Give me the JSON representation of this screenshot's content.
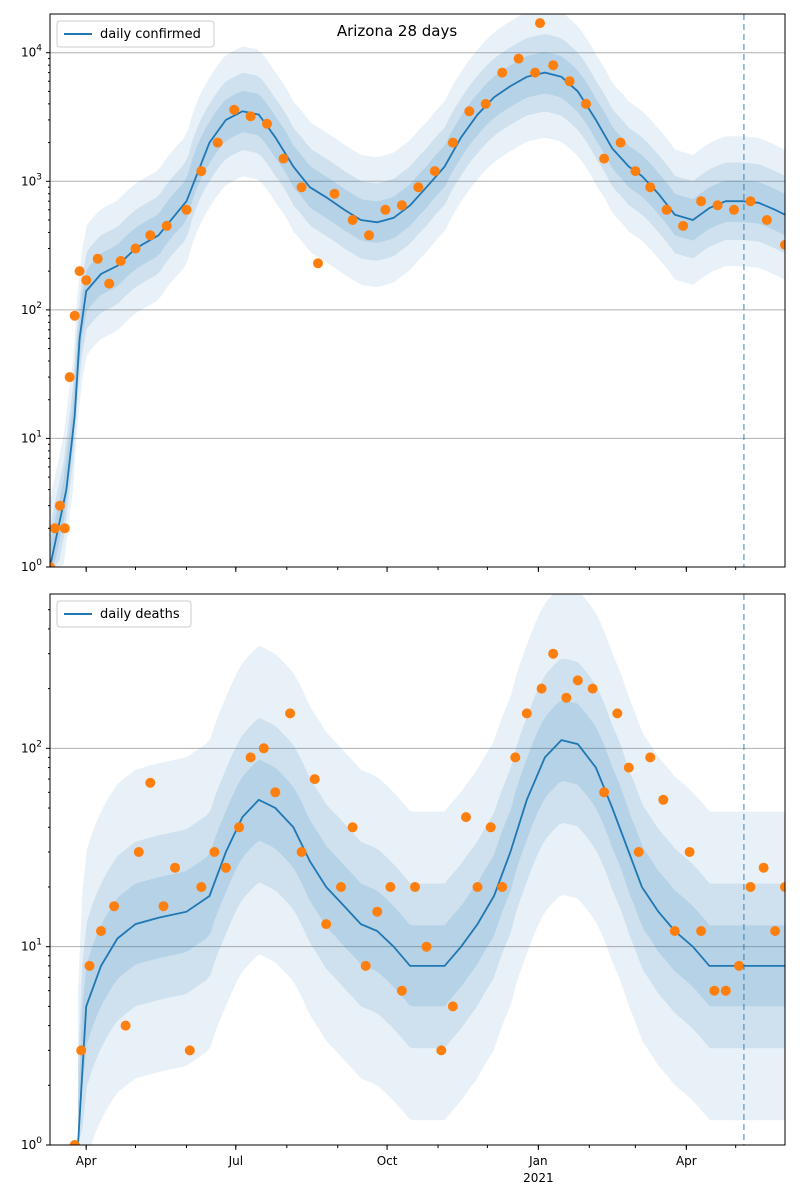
{
  "title": "Arizona 28 days",
  "colors": {
    "line": "#1f77b4",
    "points": "#ff7f0e",
    "band": "#1f77b4",
    "grid": "#b0b0b0",
    "vline": "#1f77b4"
  },
  "x_axis": {
    "ticks": [
      {
        "date": "2020-04-01",
        "label": "Apr",
        "sublabel": ""
      },
      {
        "date": "2020-07-01",
        "label": "Jul",
        "sublabel": ""
      },
      {
        "date": "2020-10-01",
        "label": "Oct",
        "sublabel": ""
      },
      {
        "date": "2021-01-01",
        "label": "Jan",
        "sublabel": "2021"
      },
      {
        "date": "2021-04-01",
        "label": "Apr",
        "sublabel": ""
      }
    ],
    "range": [
      "2020-03-10",
      "2021-05-31"
    ],
    "vertical_marker": "2021-05-06"
  },
  "chart_data": [
    {
      "type": "line",
      "title": "Arizona 28 days",
      "legend": "daily confirmed",
      "legend_position": "top-left",
      "yscale": "log",
      "ylim": [
        1,
        20000
      ],
      "yticks": [
        {
          "value": 1,
          "base": "10",
          "exp": "0"
        },
        {
          "value": 10,
          "base": "10",
          "exp": "1"
        },
        {
          "value": 100,
          "base": "10",
          "exp": "2"
        },
        {
          "value": 1000,
          "base": "10",
          "exp": "3"
        },
        {
          "value": 10000,
          "base": "10",
          "exp": "4"
        }
      ],
      "grid": "horizontal",
      "series": [
        {
          "name": "daily confirmed",
          "style": "line",
          "x": [
            "2020-03-10",
            "2020-03-15",
            "2020-03-20",
            "2020-03-25",
            "2020-03-28",
            "2020-04-01",
            "2020-04-10",
            "2020-04-20",
            "2020-05-01",
            "2020-05-15",
            "2020-06-01",
            "2020-06-15",
            "2020-06-25",
            "2020-07-05",
            "2020-07-15",
            "2020-07-25",
            "2020-08-05",
            "2020-08-15",
            "2020-08-25",
            "2020-09-05",
            "2020-09-15",
            "2020-09-25",
            "2020-10-05",
            "2020-10-15",
            "2020-10-25",
            "2020-11-05",
            "2020-11-15",
            "2020-11-25",
            "2020-12-05",
            "2020-12-15",
            "2020-12-25",
            "2021-01-05",
            "2021-01-15",
            "2021-01-25",
            "2021-02-05",
            "2021-02-15",
            "2021-02-25",
            "2021-03-05",
            "2021-03-15",
            "2021-03-25",
            "2021-04-05",
            "2021-04-15",
            "2021-04-25",
            "2021-05-05",
            "2021-05-15",
            "2021-05-25",
            "2021-05-31"
          ],
          "y": [
            1,
            2,
            4,
            15,
            60,
            140,
            190,
            220,
            300,
            380,
            700,
            2000,
            3000,
            3500,
            3300,
            2200,
            1300,
            900,
            750,
            600,
            500,
            480,
            520,
            650,
            900,
            1300,
            2200,
            3300,
            4500,
            5500,
            6500,
            7000,
            6500,
            5000,
            3000,
            1800,
            1300,
            1100,
            800,
            550,
            500,
            620,
            700,
            700,
            680,
            600,
            550
          ]
        },
        {
          "name": "observed daily confirmed",
          "style": "points",
          "x": [
            "2020-03-10",
            "2020-03-13",
            "2020-03-16",
            "2020-03-19",
            "2020-03-22",
            "2020-03-25",
            "2020-03-28",
            "2020-04-01",
            "2020-04-08",
            "2020-04-15",
            "2020-04-22",
            "2020-05-01",
            "2020-05-10",
            "2020-05-20",
            "2020-06-01",
            "2020-06-10",
            "2020-06-20",
            "2020-06-30",
            "2020-07-10",
            "2020-07-20",
            "2020-07-30",
            "2020-08-10",
            "2020-08-20",
            "2020-08-30",
            "2020-09-10",
            "2020-09-20",
            "2020-09-30",
            "2020-10-10",
            "2020-10-20",
            "2020-10-30",
            "2020-11-10",
            "2020-11-20",
            "2020-11-30",
            "2020-12-10",
            "2020-12-20",
            "2020-12-30",
            "2021-01-02",
            "2021-01-10",
            "2021-01-20",
            "2021-01-30",
            "2021-02-10",
            "2021-02-20",
            "2021-03-01",
            "2021-03-10",
            "2021-03-20",
            "2021-03-30",
            "2021-04-10",
            "2021-04-20",
            "2021-04-30",
            "2021-05-10",
            "2021-05-20",
            "2021-05-31"
          ],
          "y": [
            1,
            2,
            3,
            2,
            30,
            90,
            200,
            170,
            250,
            160,
            240,
            300,
            380,
            450,
            600,
            1200,
            2000,
            3600,
            3200,
            2800,
            1500,
            900,
            230,
            800,
            500,
            380,
            600,
            650,
            900,
            1200,
            2000,
            3500,
            4000,
            7000,
            9000,
            7000,
            17000,
            8000,
            6000,
            4000,
            1500,
            2000,
            1200,
            900,
            600,
            450,
            700,
            650,
            600,
            700,
            500,
            320
          ]
        }
      ]
    },
    {
      "type": "line",
      "legend": "daily deaths",
      "legend_position": "top-left",
      "yscale": "log",
      "ylim": [
        1,
        600
      ],
      "yticks": [
        {
          "value": 1,
          "base": "10",
          "exp": "0"
        },
        {
          "value": 10,
          "base": "10",
          "exp": "1"
        },
        {
          "value": 100,
          "base": "10",
          "exp": "2"
        }
      ],
      "grid": "horizontal",
      "series": [
        {
          "name": "daily deaths",
          "style": "line",
          "x": [
            "2020-03-27",
            "2020-04-01",
            "2020-04-10",
            "2020-04-20",
            "2020-05-01",
            "2020-05-15",
            "2020-06-01",
            "2020-06-15",
            "2020-06-25",
            "2020-07-05",
            "2020-07-15",
            "2020-07-25",
            "2020-08-05",
            "2020-08-15",
            "2020-08-25",
            "2020-09-05",
            "2020-09-15",
            "2020-09-25",
            "2020-10-05",
            "2020-10-15",
            "2020-10-25",
            "2020-11-05",
            "2020-11-15",
            "2020-11-25",
            "2020-12-05",
            "2020-12-15",
            "2020-12-25",
            "2021-01-05",
            "2021-01-15",
            "2021-01-25",
            "2021-02-05",
            "2021-02-15",
            "2021-02-25",
            "2021-03-05",
            "2021-03-15",
            "2021-03-25",
            "2021-04-05",
            "2021-04-15",
            "2021-04-25",
            "2021-05-05",
            "2021-05-15",
            "2021-05-25",
            "2021-05-31"
          ],
          "y": [
            1,
            5,
            8,
            11,
            13,
            14,
            15,
            18,
            30,
            45,
            55,
            50,
            40,
            27,
            20,
            16,
            13,
            12,
            10,
            8,
            8,
            8,
            10,
            13,
            18,
            30,
            55,
            90,
            110,
            105,
            80,
            50,
            30,
            20,
            15,
            12,
            10,
            8,
            8,
            8,
            8,
            8,
            8
          ]
        },
        {
          "name": "observed daily deaths",
          "style": "points",
          "x": [
            "2020-03-25",
            "2020-03-29",
            "2020-04-03",
            "2020-04-10",
            "2020-04-18",
            "2020-04-25",
            "2020-05-03",
            "2020-05-10",
            "2020-05-18",
            "2020-05-25",
            "2020-06-03",
            "2020-06-10",
            "2020-06-18",
            "2020-06-25",
            "2020-07-03",
            "2020-07-10",
            "2020-07-18",
            "2020-07-25",
            "2020-08-03",
            "2020-08-10",
            "2020-08-18",
            "2020-08-25",
            "2020-09-03",
            "2020-09-10",
            "2020-09-18",
            "2020-09-25",
            "2020-10-03",
            "2020-10-10",
            "2020-10-18",
            "2020-10-25",
            "2020-11-03",
            "2020-11-10",
            "2020-11-18",
            "2020-11-25",
            "2020-12-03",
            "2020-12-10",
            "2020-12-18",
            "2020-12-25",
            "2021-01-03",
            "2021-01-10",
            "2021-01-18",
            "2021-01-25",
            "2021-02-03",
            "2021-02-10",
            "2021-02-18",
            "2021-02-25",
            "2021-03-03",
            "2021-03-10",
            "2021-03-18",
            "2021-03-25",
            "2021-04-03",
            "2021-04-10",
            "2021-04-18",
            "2021-04-25",
            "2021-05-03",
            "2021-05-10",
            "2021-05-18",
            "2021-05-25",
            "2021-05-31"
          ],
          "y": [
            1,
            3,
            8,
            12,
            16,
            4,
            30,
            67,
            16,
            25,
            3,
            20,
            30,
            25,
            40,
            90,
            100,
            60,
            150,
            30,
            70,
            13,
            20,
            40,
            8,
            15,
            20,
            6,
            20,
            10,
            3,
            5,
            45,
            20,
            40,
            20,
            90,
            150,
            200,
            300,
            180,
            220,
            200,
            60,
            150,
            80,
            30,
            90,
            55,
            12,
            30,
            12,
            6,
            6,
            8,
            20,
            25,
            12,
            20
          ]
        }
      ]
    }
  ]
}
